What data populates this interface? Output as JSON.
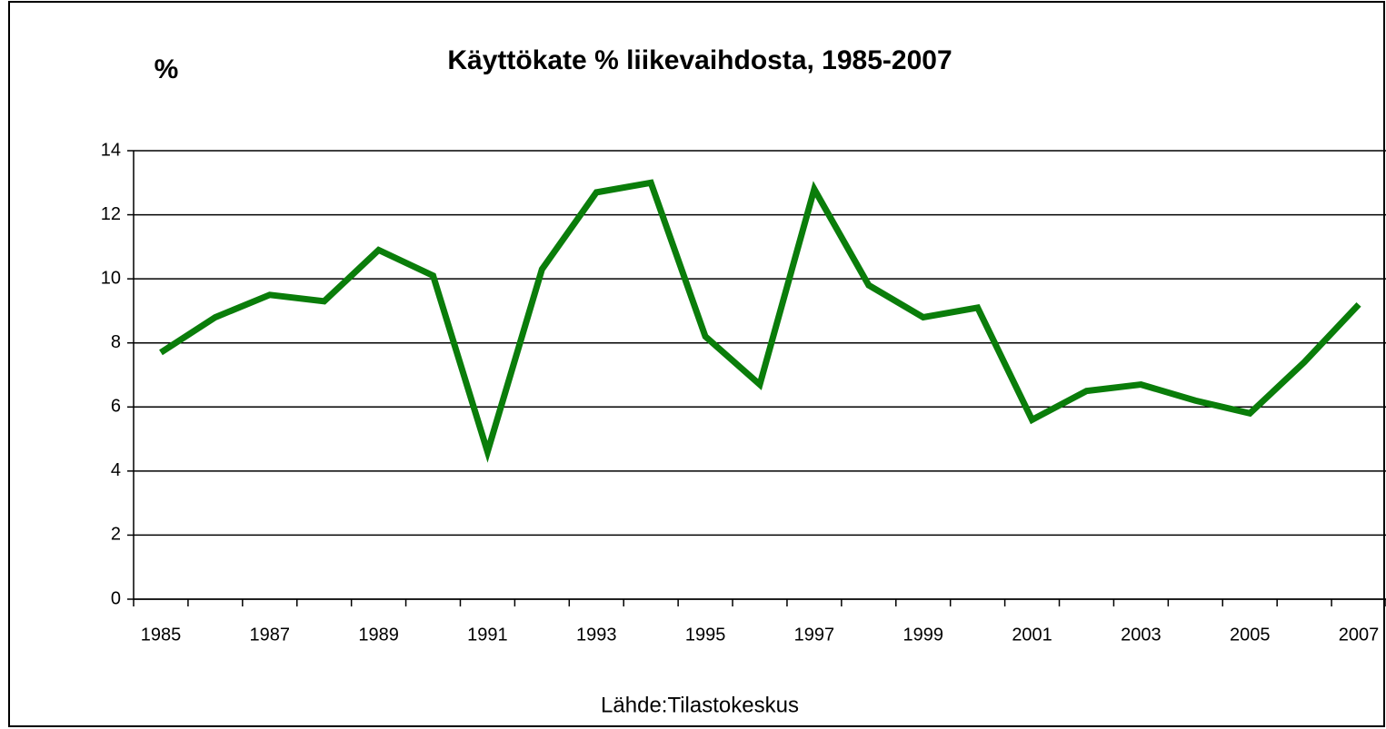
{
  "chart_data": {
    "type": "line",
    "title": "Käyttökate % liikevaihdosta, 1985-2007",
    "y_label": "%",
    "source": "Lähde:Tilastokeskus",
    "categories": [
      "1985",
      null,
      "1987",
      null,
      "1989",
      null,
      "1991",
      null,
      "1993",
      null,
      "1995",
      null,
      "1997",
      null,
      "1999",
      null,
      "2001",
      null,
      "2003",
      null,
      "2005",
      null,
      "2007"
    ],
    "series": [
      {
        "color": "#0a7d0a",
        "values": [
          7.7,
          8.8,
          9.5,
          9.3,
          10.9,
          10.1,
          4.6,
          10.3,
          12.7,
          13.0,
          8.2,
          6.7,
          12.8,
          9.8,
          8.8,
          9.1,
          5.6,
          6.5,
          6.7,
          6.2,
          5.8,
          7.4,
          9.2
        ]
      }
    ],
    "ylim": [
      0,
      14
    ],
    "yticks": [
      0,
      2,
      4,
      6,
      8,
      10,
      12,
      14
    ],
    "grid": true
  }
}
